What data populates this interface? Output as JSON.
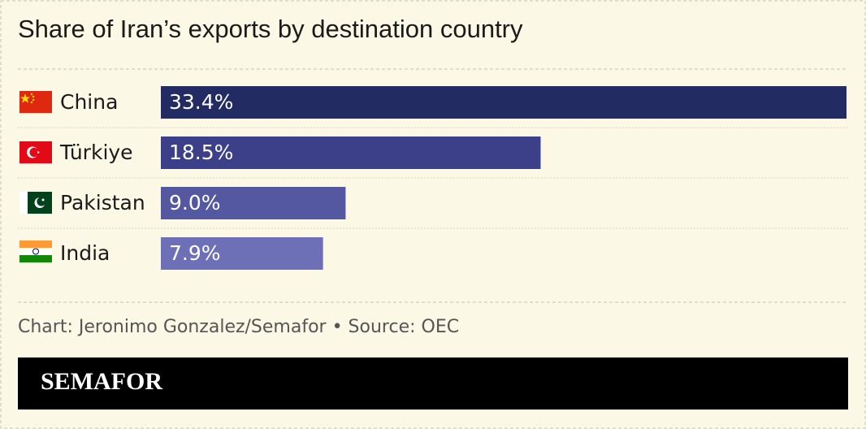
{
  "chart_data": {
    "type": "bar",
    "orientation": "horizontal",
    "title": "Share of Iran’s exports by destination country",
    "categories": [
      "China",
      "Türkiye",
      "Pakistan",
      "India"
    ],
    "values": [
      33.4,
      18.5,
      9.0,
      7.9
    ],
    "value_labels": [
      "33.4%",
      "18.5%",
      "9.0%",
      "7.9%"
    ],
    "colors": [
      "#232b63",
      "#3b4088",
      "#5358a1",
      "#6d70b6"
    ],
    "source": "Chart: Jeronimo Gonzalez/Semafor • Source: OEC"
  },
  "footer": {
    "brand": "SEMAFOR"
  }
}
